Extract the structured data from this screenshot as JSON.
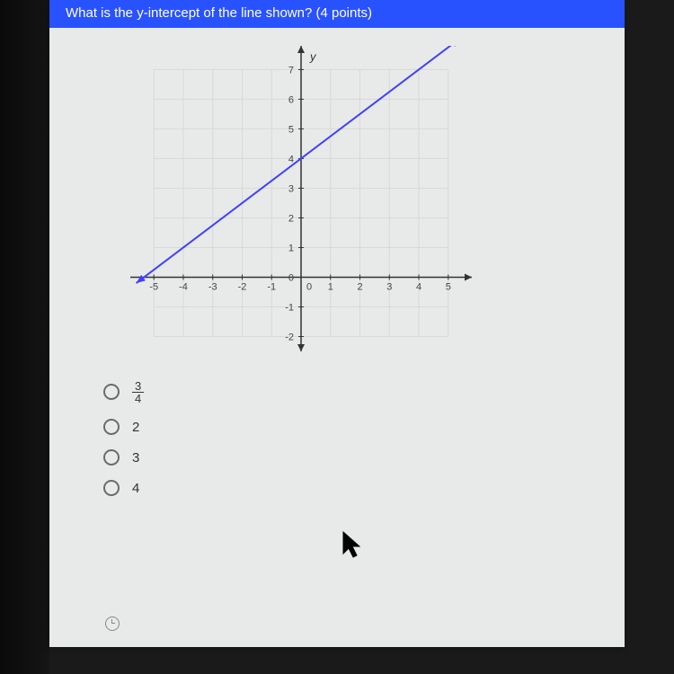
{
  "question": {
    "text": "What is the y-intercept of the line shown? (4 points)"
  },
  "graph": {
    "axis_label_y": "y",
    "x_ticks": [
      -5,
      -4,
      -3,
      -2,
      -1,
      0,
      1,
      2,
      3,
      4,
      5
    ],
    "y_ticks": [
      7,
      6,
      5,
      4,
      3,
      2,
      1,
      0,
      -1,
      -2
    ],
    "xlim": [
      -5.8,
      5.8
    ],
    "ylim": [
      -2.5,
      7.8
    ],
    "grid_color": "#d8d8d8",
    "axis_color": "#333333",
    "line_color": "#4040ff",
    "line_width": 2,
    "line_points": [
      [
        -5.6,
        -0.2
      ],
      [
        5.4,
        8.05
      ]
    ],
    "background": "#e8eae9",
    "tick_fontsize": 11,
    "tick_color": "#444444"
  },
  "answers": {
    "options": [
      {
        "type": "fraction",
        "num": "3",
        "den": "4"
      },
      {
        "type": "plain",
        "label": "2"
      },
      {
        "type": "plain",
        "label": "3"
      },
      {
        "type": "plain",
        "label": "4"
      }
    ]
  },
  "colors": {
    "header_bg": "#2952ff",
    "page_bg": "#e8eae9",
    "body_bg": "#1a1a1a"
  }
}
